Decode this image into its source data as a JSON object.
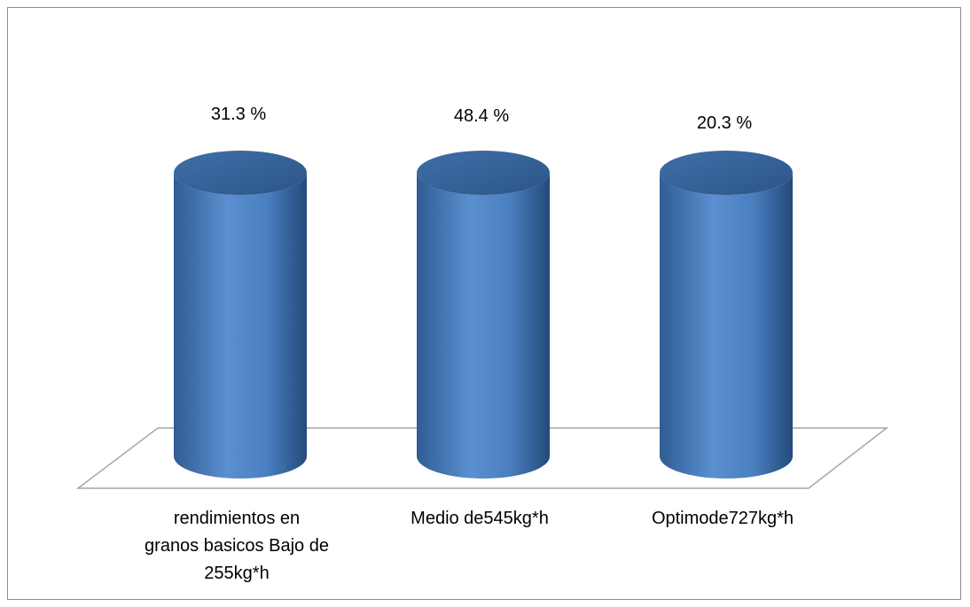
{
  "chart_data": {
    "type": "bar",
    "categories": [
      "rendimientos en granos basicos Bajo de 255kg*h",
      "Medio de545kg*h",
      "Optimode727kg*h"
    ],
    "category_label_lines": [
      [
        "rendimientos en",
        "granos basicos Bajo de",
        "255kg*h"
      ],
      [
        "Medio de545kg*h"
      ],
      [
        "Optimode727kg*h"
      ]
    ],
    "values": [
      31.3,
      48.4,
      20.3
    ],
    "data_labels": [
      "31.3 %",
      "48.4 %",
      "20.3 %"
    ],
    "unit": "%",
    "bar_shape": "cylinder",
    "three_d": true,
    "bar_color": "#4f81bd",
    "bar_color_dark": "#2e5a8f",
    "floor_color": "#a6a6a6",
    "border_color": "#8c8c8c",
    "title": "",
    "xlabel": "",
    "ylabel": "",
    "grid": false,
    "legend": "none"
  }
}
